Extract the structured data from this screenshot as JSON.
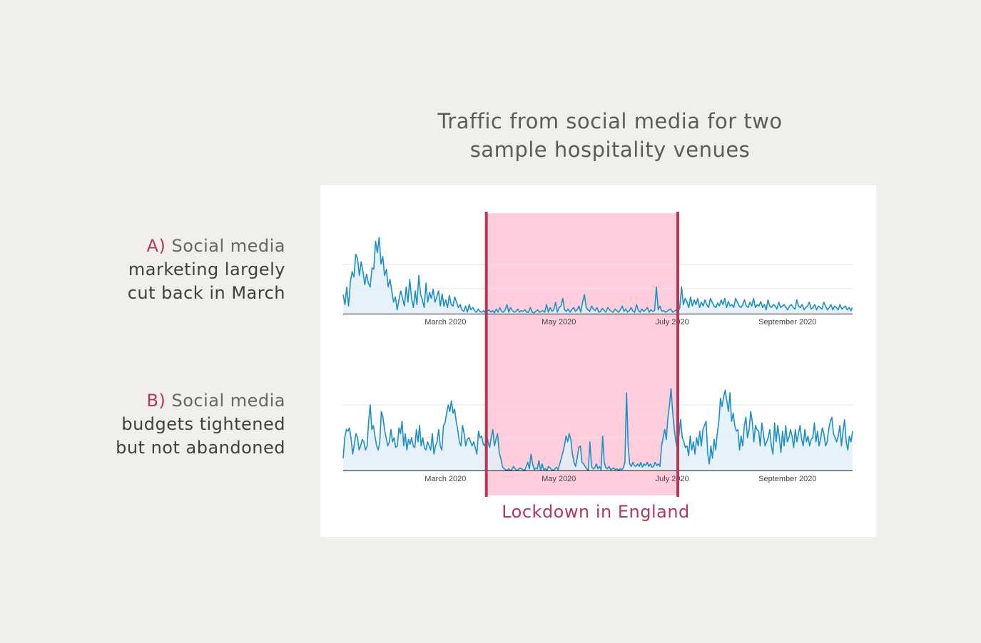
{
  "title_lines": [
    "Traffic from social media for two",
    "sample hospitality venues"
  ],
  "labels": {
    "a": {
      "letter": "A)",
      "lead": "Social media",
      "lines": [
        "marketing largely",
        "cut back in March"
      ]
    },
    "b": {
      "letter": "B)",
      "lead": "Social media",
      "lines": [
        "budgets tightened",
        "but not abandoned"
      ]
    }
  },
  "annotation": "Lockdown in England",
  "colors": {
    "line": "#1f8fc0",
    "area": "#e2eff8",
    "shade": "#ffc8d8",
    "shade_border": "#b03a58",
    "accent_text": "#b03a58"
  },
  "chart_data": [
    {
      "type": "area",
      "series_label": "A",
      "x_start": "2020-01-06",
      "x_end": "2020-10-06",
      "x_ticks": [
        "March 2020",
        "May 2020",
        "July 2020",
        "September 2020"
      ],
      "x_tick_dates": [
        "2020-03-01",
        "2020-05-01",
        "2020-07-01",
        "2020-09-01"
      ],
      "shaded_range": [
        "2020-03-23",
        "2020-07-04"
      ],
      "ylim": [
        0,
        1
      ],
      "values": [
        0.25,
        0.12,
        0.35,
        0.1,
        0.42,
        0.55,
        0.48,
        0.78,
        0.72,
        0.5,
        0.68,
        0.55,
        0.38,
        0.52,
        0.4,
        0.35,
        0.6,
        0.58,
        0.95,
        0.8,
        1.0,
        0.65,
        0.75,
        0.5,
        0.58,
        0.35,
        0.45,
        0.3,
        0.15,
        0.22,
        0.05,
        0.18,
        0.3,
        0.2,
        0.1,
        0.35,
        0.15,
        0.45,
        0.2,
        0.08,
        0.3,
        0.12,
        0.5,
        0.25,
        0.18,
        0.08,
        0.4,
        0.15,
        0.28,
        0.2,
        0.32,
        0.15,
        0.22,
        0.3,
        0.1,
        0.26,
        0.1,
        0.18,
        0.08,
        0.24,
        0.12,
        0.1,
        0.22,
        0.15,
        0.08,
        0.12,
        0.05,
        0.03,
        0.1,
        0.02,
        0.12,
        0.05,
        0.08,
        0.04,
        0.02,
        0.06,
        0.03,
        0.02,
        0.04,
        0.01,
        0.03,
        0.05,
        0.02,
        0.04,
        0.01,
        0.06,
        0.02,
        0.08,
        0.03,
        0.02,
        0.05,
        0.12,
        0.02,
        0.08,
        0.04,
        0.02,
        0.03,
        0.06,
        0.02,
        0.04,
        0.03,
        0.05,
        0.02,
        0.02,
        0.08,
        0.02,
        0.01,
        0.03,
        0.05,
        0.02,
        0.03,
        0.04,
        0.02,
        0.12,
        0.02,
        0.08,
        0.03,
        0.05,
        0.15,
        0.02,
        0.08,
        0.1,
        0.2,
        0.05,
        0.03,
        0.06,
        0.02,
        0.05,
        0.08,
        0.03,
        0.05,
        0.1,
        0.02,
        0.15,
        0.25,
        0.08,
        0.05,
        0.03,
        0.1,
        0.06,
        0.04,
        0.08,
        0.02,
        0.03,
        0.07,
        0.04,
        0.02,
        0.08,
        0.05,
        0.03,
        0.02,
        0.06,
        0.04,
        0.02,
        0.05,
        0.1,
        0.03,
        0.06,
        0.02,
        0.04,
        0.08,
        0.03,
        0.02,
        0.12,
        0.04,
        0.02,
        0.06,
        0.03,
        0.05,
        0.08,
        0.02,
        0.05,
        0.03,
        0.04,
        0.35,
        0.05,
        0.1,
        0.03,
        0.04,
        0.02,
        0.03,
        0.05,
        0.06,
        0.02,
        0.03,
        0.05,
        0.02,
        0.08,
        0.35,
        0.12,
        0.2,
        0.15,
        0.08,
        0.22,
        0.1,
        0.18,
        0.12,
        0.2,
        0.08,
        0.15,
        0.1,
        0.18,
        0.12,
        0.08,
        0.2,
        0.15,
        0.1,
        0.08,
        0.14,
        0.1,
        0.18,
        0.12,
        0.2,
        0.08,
        0.16,
        0.1,
        0.12,
        0.08,
        0.2,
        0.15,
        0.1,
        0.08,
        0.12,
        0.18,
        0.1,
        0.08,
        0.15,
        0.1,
        0.2,
        0.08,
        0.12,
        0.1,
        0.16,
        0.08,
        0.12,
        0.05,
        0.18,
        0.1,
        0.08,
        0.12,
        0.1,
        0.06,
        0.15,
        0.08,
        0.1,
        0.12,
        0.08,
        0.05,
        0.1,
        0.12,
        0.08,
        0.06,
        0.18,
        0.1,
        0.08,
        0.12,
        0.05,
        0.08,
        0.1,
        0.15,
        0.06,
        0.08,
        0.12,
        0.05,
        0.1,
        0.08,
        0.06,
        0.15,
        0.1,
        0.05,
        0.08,
        0.12,
        0.05,
        0.1,
        0.08,
        0.05,
        0.12,
        0.06,
        0.08,
        0.1,
        0.05,
        0.08,
        0.04,
        0.08
      ]
    },
    {
      "type": "area",
      "series_label": "B",
      "x_start": "2020-01-06",
      "x_end": "2020-10-06",
      "x_ticks": [
        "March 2020",
        "May 2020",
        "July 2020",
        "September 2020"
      ],
      "x_tick_dates": [
        "2020-03-01",
        "2020-05-01",
        "2020-07-01",
        "2020-09-01"
      ],
      "shaded_range": [
        "2020-03-23",
        "2020-07-04"
      ],
      "ylim": [
        0,
        1
      ],
      "values": [
        0.15,
        0.4,
        0.5,
        0.48,
        0.52,
        0.38,
        0.2,
        0.32,
        0.45,
        0.4,
        0.25,
        0.3,
        0.38,
        0.35,
        0.25,
        0.3,
        0.6,
        0.8,
        0.5,
        0.55,
        0.42,
        0.3,
        0.25,
        0.35,
        0.72,
        0.65,
        0.5,
        0.4,
        0.3,
        0.35,
        0.5,
        0.35,
        0.4,
        0.28,
        0.3,
        0.52,
        0.45,
        0.6,
        0.3,
        0.45,
        0.25,
        0.38,
        0.32,
        0.4,
        0.3,
        0.28,
        0.5,
        0.35,
        0.55,
        0.3,
        0.4,
        0.28,
        0.25,
        0.35,
        0.3,
        0.25,
        0.45,
        0.2,
        0.3,
        0.35,
        0.5,
        0.3,
        0.25,
        0.55,
        0.58,
        0.7,
        0.8,
        0.72,
        0.85,
        0.7,
        0.75,
        0.6,
        0.5,
        0.35,
        0.3,
        0.55,
        0.45,
        0.3,
        0.38,
        0.4,
        0.35,
        0.3,
        0.35,
        0.28,
        0.2,
        0.48,
        0.4,
        0.42,
        0.32,
        0.3,
        0.45,
        0.35,
        0.28,
        0.4,
        0.5,
        0.3,
        0.38,
        0.45,
        0.22,
        0.15,
        0.05,
        0.02,
        0.01,
        0.0,
        0.02,
        0.0,
        0.01,
        0.05,
        0.02,
        0.0,
        0.01,
        0.03,
        0.02,
        0.01,
        0.0,
        0.05,
        0.1,
        0.02,
        0.2,
        0.08,
        0.01,
        0.03,
        0.02,
        0.12,
        0.0,
        0.08,
        0.01,
        0.02,
        0.0,
        0.05,
        0.03,
        0.01,
        0.0,
        0.02,
        0.04,
        0.01,
        0.08,
        0.15,
        0.22,
        0.3,
        0.42,
        0.35,
        0.45,
        0.38,
        0.2,
        0.1,
        0.05,
        0.15,
        0.28,
        0.3,
        0.1,
        0.08,
        0.05,
        0.02,
        0.0,
        0.35,
        0.05,
        0.02,
        0.03,
        0.08,
        0.02,
        0.05,
        0.01,
        0.42,
        0.1,
        0.03,
        0.02,
        0.05,
        0.01,
        0.02,
        0.03,
        0.01,
        0.02,
        0.0,
        0.02,
        0.01,
        0.03,
        0.1,
        0.95,
        0.3,
        0.08,
        0.05,
        0.1,
        0.06,
        0.05,
        0.08,
        0.05,
        0.1,
        0.04,
        0.08,
        0.06,
        0.1,
        0.05,
        0.08,
        0.04,
        0.05,
        0.1,
        0.06,
        0.08,
        0.05,
        0.3,
        0.4,
        0.5,
        0.38,
        0.65,
        0.8,
        1.0,
        0.7,
        0.5,
        0.35,
        0.25,
        0.45,
        0.62,
        0.4,
        0.35,
        0.28,
        0.3,
        0.18,
        0.42,
        0.25,
        0.35,
        0.2,
        0.4,
        0.3,
        0.48,
        0.3,
        0.5,
        0.55,
        0.6,
        0.2,
        0.08,
        0.3,
        0.15,
        0.38,
        0.25,
        0.45,
        0.6,
        0.88,
        0.78,
        0.9,
        0.98,
        0.85,
        0.72,
        0.95,
        0.6,
        0.7,
        0.55,
        0.48,
        0.5,
        0.25,
        0.42,
        0.3,
        0.55,
        0.65,
        0.4,
        0.5,
        0.72,
        0.6,
        0.35,
        0.55,
        0.5,
        0.48,
        0.3,
        0.58,
        0.45,
        0.3,
        0.35,
        0.4,
        0.5,
        0.3,
        0.2,
        0.58,
        0.35,
        0.55,
        0.4,
        0.22,
        0.48,
        0.3,
        0.55,
        0.35,
        0.4,
        0.5,
        0.42,
        0.28,
        0.5,
        0.35,
        0.45,
        0.55,
        0.38,
        0.3,
        0.5,
        0.35,
        0.42,
        0.3,
        0.38,
        0.4,
        0.58,
        0.35,
        0.48,
        0.3,
        0.4,
        0.52,
        0.45,
        0.3,
        0.35,
        0.5,
        0.6,
        0.65,
        0.45,
        0.4,
        0.35,
        0.42,
        0.55,
        0.3,
        0.48,
        0.62,
        0.35,
        0.25,
        0.42,
        0.35,
        0.48
      ]
    }
  ]
}
